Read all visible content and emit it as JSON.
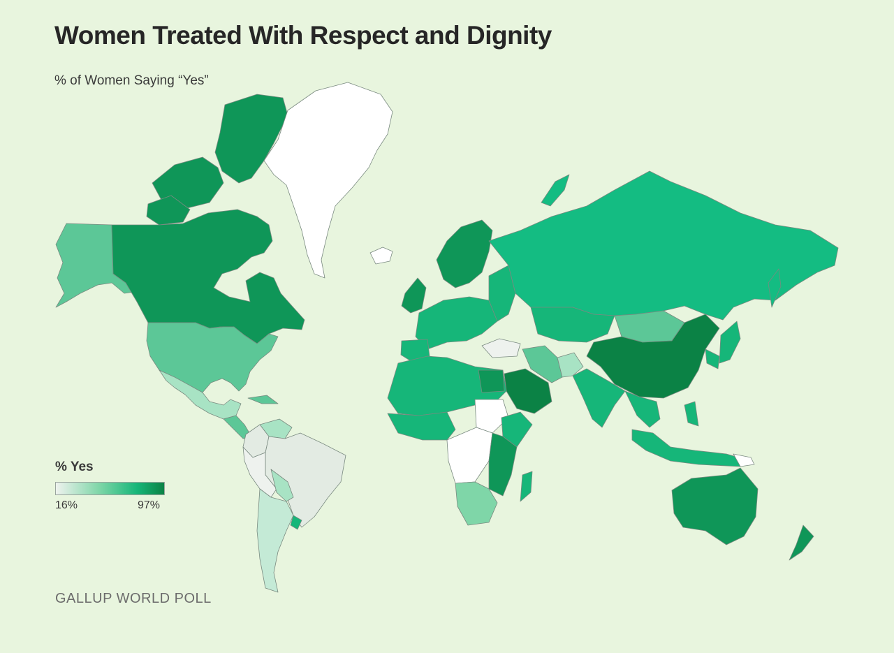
{
  "title": "Women Treated With Respect and Dignity",
  "subtitle": "% of Women Saying “Yes”",
  "legend": {
    "title": "% Yes",
    "min_label": "16%",
    "max_label": "97%",
    "colors": [
      "#eef2ee",
      "#7fd6a8",
      "#16b679",
      "#0b8245"
    ]
  },
  "source": "GALLUP WORLD POLL"
}
